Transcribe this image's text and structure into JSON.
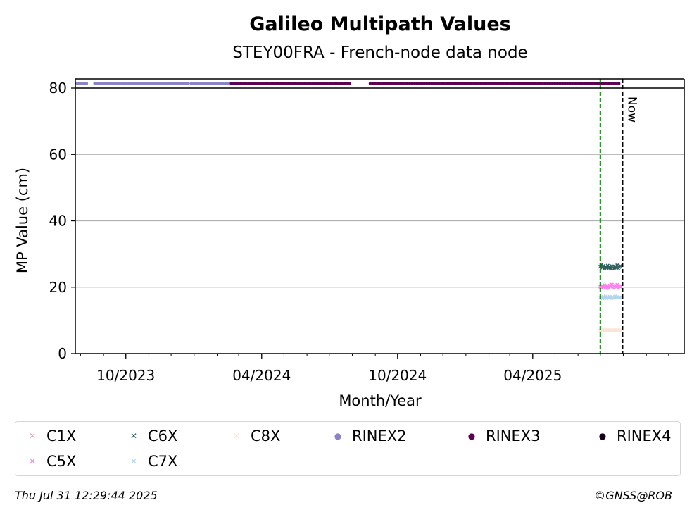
{
  "chart_data": {
    "type": "scatter",
    "title": "Galileo Multipath Values",
    "subtitle": "STEY00FRA - French-node data node",
    "xlabel": "Month/Year",
    "ylabel": "MP Value (cm)",
    "xlim": [
      "2023-07-25",
      "2025-10-22"
    ],
    "ylim": [
      0,
      80
    ],
    "yticks": [
      0,
      20,
      40,
      60,
      80
    ],
    "xticks": [
      {
        "date": "2023-10-01",
        "label": "10/2023"
      },
      {
        "date": "2024-04-01",
        "label": "04/2024"
      },
      {
        "date": "2024-10-01",
        "label": "10/2024"
      },
      {
        "date": "2025-04-01",
        "label": "04/2025"
      }
    ],
    "grid": "horizontal",
    "vlines": [
      {
        "date": "2025-07-01",
        "color": "#007a00"
      },
      {
        "date": "2025-07-31",
        "color": "#000000",
        "label": "Now"
      }
    ],
    "legend_position": "bottom",
    "series": [
      {
        "name": "C1X",
        "marker": "x",
        "color": "#f4a3a8",
        "x_range": [
          "2025-07-01",
          "2025-07-28"
        ],
        "values": []
      },
      {
        "name": "C5X",
        "marker": "x",
        "color": "#ff7ff2",
        "x_range": [
          "2025-07-01",
          "2025-07-28"
        ],
        "values": [
          20.1,
          19.8,
          20.4,
          20.0,
          20.6,
          19.9,
          20.3,
          20.2,
          19.7,
          20.5,
          20.1,
          20.8,
          19.9,
          20.2,
          20.4,
          20.0,
          20.7,
          19.8,
          20.3,
          20.1
        ]
      },
      {
        "name": "C6X",
        "marker": "x",
        "color": "#2f5f5f",
        "x_range": [
          "2025-07-01",
          "2025-07-28"
        ],
        "values": [
          26.2,
          26.8,
          25.9,
          26.4,
          25.6,
          26.1,
          25.8,
          26.5,
          25.7,
          26.0,
          25.5,
          26.3,
          25.9,
          25.6,
          26.2,
          25.8,
          26.6,
          25.7,
          26.1,
          26.4
        ]
      },
      {
        "name": "C7X",
        "marker": "x",
        "color": "#b5d3ee",
        "x_range": [
          "2025-07-01",
          "2025-07-28"
        ],
        "values": [
          16.8,
          17.1,
          16.6,
          17.0,
          16.9,
          17.2,
          16.7,
          17.0,
          16.8,
          17.1,
          16.9,
          16.7,
          17.0,
          16.8,
          17.2,
          16.9,
          17.0,
          16.8,
          16.9,
          17.0
        ]
      },
      {
        "name": "C8X",
        "marker": "x",
        "color": "#fbe3d6",
        "x_range": [
          "2025-07-01",
          "2025-07-28"
        ],
        "values": [
          7.0,
          7.1,
          7.0,
          7.0,
          7.1,
          7.0,
          7.0,
          7.1,
          7.0,
          7.0,
          7.1,
          7.0,
          7.0,
          7.1,
          7.0,
          7.0,
          7.1,
          7.0,
          7.0,
          7.1
        ]
      },
      {
        "name": "RINEX2",
        "marker": "dot",
        "color": "#8b84c4",
        "segments": [
          [
            "2023-07-25",
            "2023-08-10"
          ],
          [
            "2023-08-20",
            "2023-12-25"
          ],
          [
            "2023-12-28",
            "2024-02-20"
          ]
        ]
      },
      {
        "name": "RINEX3",
        "marker": "dot",
        "color": "#5c0055",
        "segments": [
          [
            "2024-02-20",
            "2024-07-30"
          ],
          [
            "2024-08-25",
            "2025-07-28"
          ]
        ]
      },
      {
        "name": "RINEX4",
        "marker": "dot",
        "color": "#14001c",
        "segments": []
      }
    ]
  },
  "footer": {
    "left": "Thu Jul 31 12:29:44 2025",
    "right": "©GNSS@ROB"
  }
}
